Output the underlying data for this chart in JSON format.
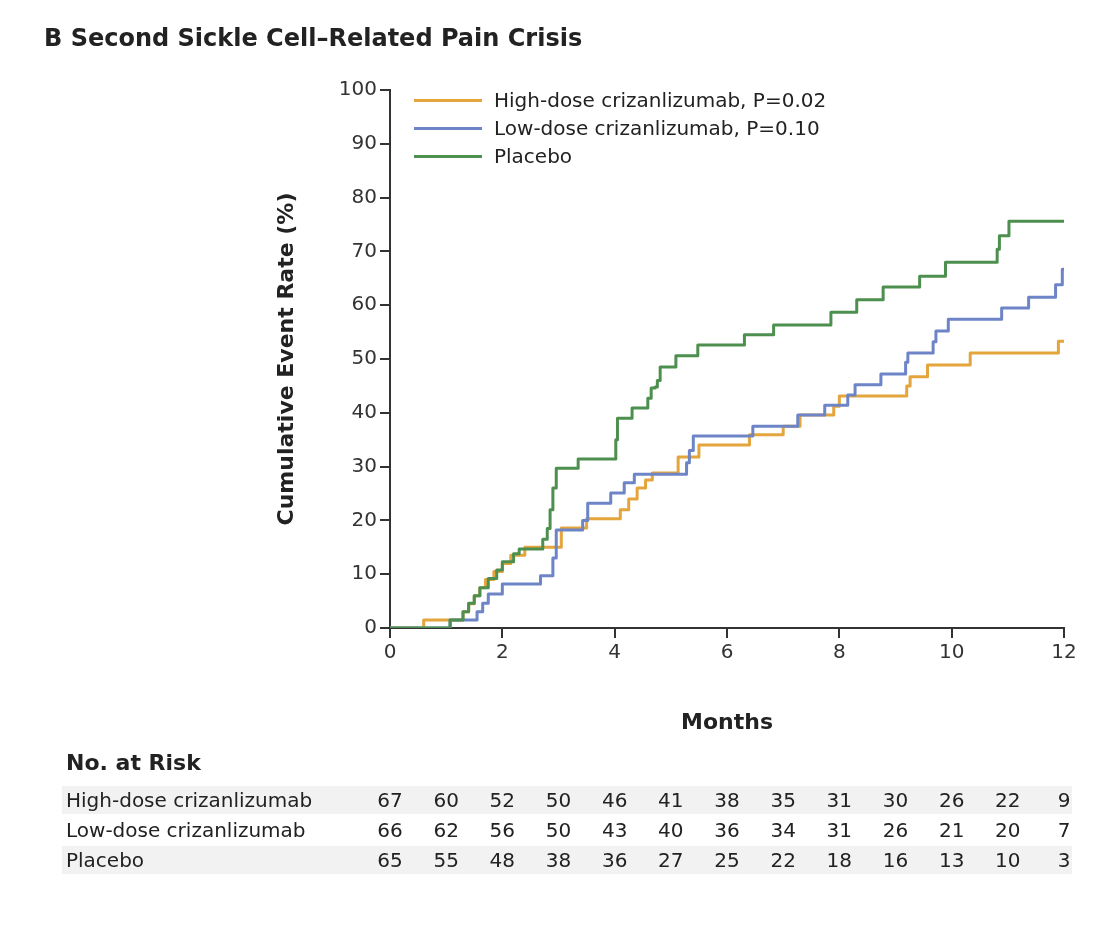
{
  "chart_data": {
    "type": "step",
    "title": "B Second Sickle Cell–Related Pain Crisis",
    "xlabel": "Months",
    "ylabel": "Cumulative Event Rate (%)",
    "xlim": [
      0,
      12
    ],
    "xticks": [
      0,
      2,
      4,
      6,
      8,
      10,
      12
    ],
    "ylim": [
      0,
      100
    ],
    "yticks": [
      0,
      10,
      20,
      30,
      40,
      50,
      60,
      70,
      80,
      90,
      100
    ],
    "grid": false,
    "legend": "top left",
    "marker": "none",
    "line_style": "solid",
    "series": [
      {
        "name": "High-dose crizanlizumab, P=0.02",
        "color": "#e3a53c",
        "x": [
          0,
          0.6,
          1.3,
          1.4,
          1.5,
          1.6,
          1.7,
          1.85,
          2.0,
          2.15,
          2.4,
          3.05,
          3.5,
          4.1,
          4.25,
          4.4,
          4.55,
          4.67,
          5.13,
          5.5,
          6.4,
          7.0,
          7.3,
          7.9,
          8.0,
          9.2,
          9.26,
          9.57,
          10.33,
          11.9,
          12
        ],
        "values": [
          0,
          1.5,
          3,
          4.5,
          6,
          7.5,
          9,
          10.5,
          12,
          13.5,
          15,
          18.6,
          20.3,
          22,
          24,
          26,
          27.5,
          28.8,
          31.8,
          34,
          35.9,
          37.5,
          39.6,
          41.2,
          43.1,
          45,
          46.7,
          48.9,
          51.1,
          53.3,
          53.3
        ]
      },
      {
        "name": "Low-dose crizanlizumab, P=0.10",
        "color": "#6d85c7",
        "x": [
          0,
          1.07,
          1.55,
          1.65,
          1.75,
          2.0,
          2.68,
          2.9,
          2.96,
          3.43,
          3.52,
          3.93,
          4.17,
          4.35,
          5.28,
          5.33,
          5.4,
          6.46,
          7.26,
          7.74,
          8.15,
          8.28,
          8.74,
          9.18,
          9.22,
          9.67,
          9.72,
          9.94,
          10.89,
          11.37,
          11.85,
          11.97,
          12
        ],
        "values": [
          0,
          1.5,
          3,
          4.6,
          6.3,
          8.2,
          9.7,
          13,
          18.2,
          20,
          23.2,
          25.1,
          27,
          28.6,
          30.7,
          33,
          35.7,
          37.5,
          39.6,
          41.4,
          43.3,
          45.2,
          47.2,
          49.4,
          51.1,
          53.2,
          55.2,
          57.4,
          59.5,
          61.5,
          63.8,
          66.7,
          66.7
        ]
      },
      {
        "name": "Placebo",
        "color": "#4d8f4e",
        "x": [
          0,
          1.07,
          1.3,
          1.4,
          1.5,
          1.6,
          1.75,
          1.9,
          2.0,
          2.2,
          2.3,
          2.72,
          2.8,
          2.85,
          2.9,
          2.96,
          3.35,
          4.02,
          4.05,
          4.31,
          4.59,
          4.65,
          4.72,
          4.76,
          4.81,
          5.09,
          5.48,
          6.31,
          6.83,
          7.85,
          8.31,
          8.78,
          9.43,
          9.89,
          10.81,
          10.85,
          11.02,
          12
        ],
        "values": [
          0,
          1.5,
          3,
          4.6,
          6,
          7.5,
          9.2,
          10.8,
          12.3,
          13.8,
          14.7,
          16.5,
          18.5,
          22,
          26,
          29.7,
          31.4,
          35,
          39,
          40.9,
          42.7,
          44.6,
          44.8,
          46,
          48.5,
          50.6,
          52.6,
          54.5,
          56.3,
          58.7,
          61,
          63.4,
          65.4,
          68,
          70.4,
          72.9,
          75.6,
          75.6
        ]
      }
    ],
    "annotations": [
      "No. at Risk",
      "High-dose crizanlizumab 67 60 52 50 46 41 38 35 31 30 26 22 9",
      "Low-dose crizanlizumab 66 62 56 50 43 40 36 34 31 26 21 20 7",
      "Placebo 65 55 48 38 36 27 25 22 18 16 13 10 3"
    ]
  }
}
